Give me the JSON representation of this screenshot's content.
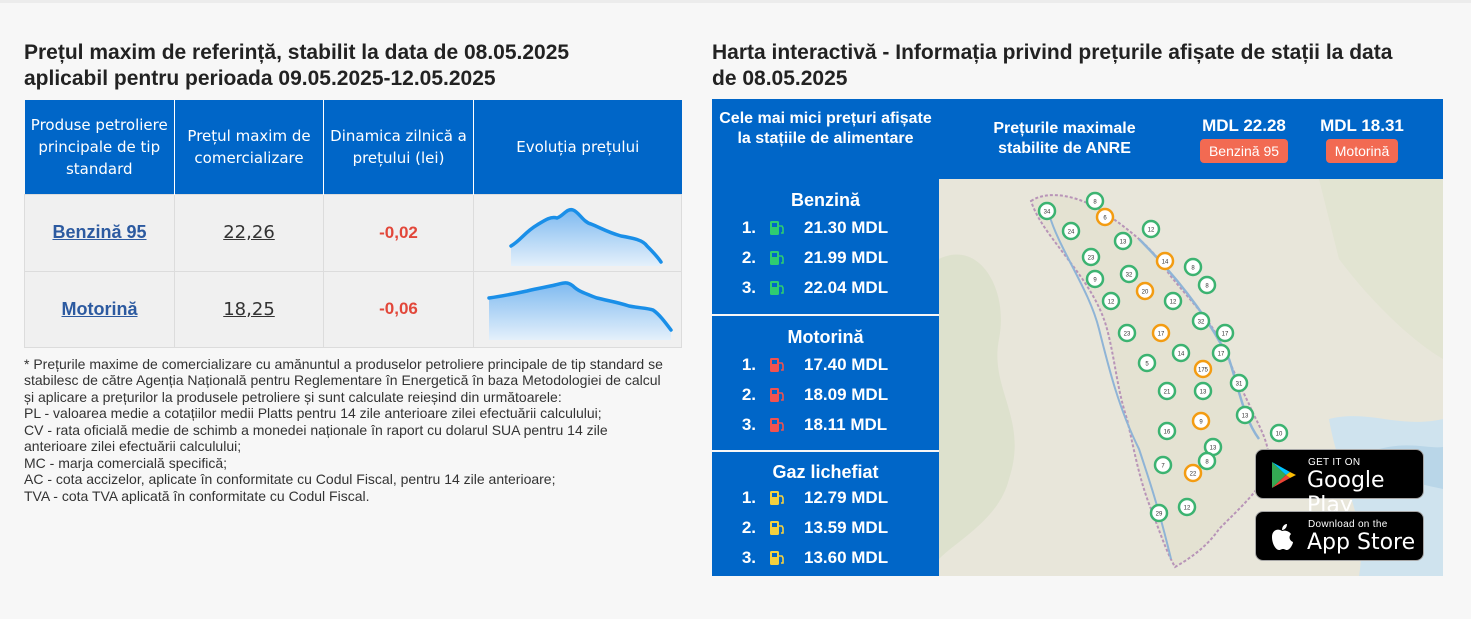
{
  "left": {
    "title_line1": "Prețul maxim de referință, stabilit la data de 08.05.2025",
    "title_line2": "aplicabil pentru perioada 09.05.2025-12.05.2025",
    "table": {
      "headers": [
        "Produse petroliere principale de tip standard",
        "Prețul maxim de comercializare",
        "Dinamica zilnică a prețului (lei)",
        "Evoluția prețului"
      ],
      "rows": [
        {
          "product": "Benzină 95",
          "price": "22,26",
          "delta": "-0,02"
        },
        {
          "product": "Motorină",
          "price": "18,25",
          "delta": "-0,06"
        }
      ]
    },
    "notes": [
      "* Prețurile maxime de comercializare cu amănuntul a produselor petroliere principale de tip standard se stabilesc de către Agenția Națională pentru Reglementare în Energetică în baza Metodologiei de calcul și aplicare a prețurilor la produsele petroliere și sunt calculate reieșind din următoarele:",
      "PL - valoarea medie a cotațiilor medii Platts pentru 14 zile anterioare zilei efectuării calculului;",
      "CV - rata oficială medie de schimb a monedei naționale în raport cu dolarul SUA pentru 14 zile anterioare zilei efectuării calculului;",
      "MC - marja comercială specifică;",
      "AC - cota accizelor, aplicate în conformitate cu Codul Fiscal, pentru 14 zile anterioare;",
      "TVA - cota TVA aplicată în conformitate cu Codul Fiscal."
    ]
  },
  "right": {
    "title_line1": "Harta interactivă - Informația privind prețurile afișate de stații la data",
    "title_line2": "de 08.05.2025",
    "header": {
      "lowest_label": "Cele mai mici prețuri afișate la stațiile de alimentare",
      "max_label": "Prețurile maximale stabilite de ANRE",
      "fuels": [
        {
          "value": "MDL 22.28",
          "badge": "Benzină 95"
        },
        {
          "value": "MDL 18.31",
          "badge": "Motorină"
        }
      ]
    },
    "sections": [
      {
        "title": "Benzină",
        "pump_color": "#2ecc71",
        "rows": [
          {
            "rank": "1.",
            "price": "21.30 MDL"
          },
          {
            "rank": "2.",
            "price": "21.99 MDL"
          },
          {
            "rank": "3.",
            "price": "22.04 MDL"
          }
        ]
      },
      {
        "title": "Motorină",
        "pump_color": "#ef5350",
        "rows": [
          {
            "rank": "1.",
            "price": "17.40 MDL"
          },
          {
            "rank": "2.",
            "price": "18.09 MDL"
          },
          {
            "rank": "3.",
            "price": "18.11 MDL"
          }
        ]
      },
      {
        "title": "Gaz lichefiat",
        "pump_color": "#f4d03f",
        "rows": [
          {
            "rank": "1.",
            "price": "12.79 MDL"
          },
          {
            "rank": "2.",
            "price": "13.59 MDL"
          },
          {
            "rank": "3.",
            "price": "13.60 MDL"
          }
        ]
      }
    ],
    "map_markers": [
      "34",
      "8",
      "6",
      "24",
      "13",
      "12",
      "23",
      "14",
      "8",
      "9",
      "32",
      "8",
      "20",
      "12",
      "12",
      "32",
      "23",
      "17",
      "17",
      "5",
      "14",
      "17",
      "175",
      "31",
      "21",
      "13",
      "13",
      "9",
      "16",
      "13",
      "10",
      "8",
      "22",
      "7",
      "12",
      "29"
    ],
    "google_play": {
      "small": "GET IT ON",
      "big": "Google Play"
    },
    "app_store": {
      "small": "Download on the",
      "big": "App Store"
    }
  },
  "colors": {
    "accent": "#0066c8",
    "negative": "#e2473a",
    "badge": "#f26a52",
    "link": "#2c5aa0"
  }
}
